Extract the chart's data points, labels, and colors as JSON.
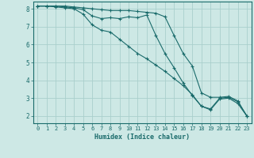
{
  "title": "",
  "xlabel": "Humidex (Indice chaleur)",
  "bg_color": "#cde8e5",
  "grid_color": "#aacfcc",
  "line_color": "#1a6b6b",
  "xlim": [
    -0.5,
    23.5
  ],
  "ylim": [
    1.6,
    8.4
  ],
  "yticks": [
    2,
    3,
    4,
    5,
    6,
    7,
    8
  ],
  "xticks": [
    0,
    1,
    2,
    3,
    4,
    5,
    6,
    7,
    8,
    9,
    10,
    11,
    12,
    13,
    14,
    15,
    16,
    17,
    18,
    19,
    20,
    21,
    22,
    23
  ],
  "line1_x": [
    0,
    1,
    2,
    3,
    4,
    5,
    6,
    7,
    8,
    9,
    10,
    11,
    12,
    13,
    14,
    15,
    16,
    17,
    18,
    19,
    20,
    21,
    22,
    23
  ],
  "line1_y": [
    8.15,
    8.15,
    8.15,
    8.15,
    8.1,
    8.05,
    8.0,
    7.95,
    7.9,
    7.9,
    7.9,
    7.85,
    7.8,
    7.75,
    7.55,
    6.5,
    5.5,
    4.8,
    3.3,
    3.05,
    3.05,
    3.1,
    2.85,
    2.0
  ],
  "line2_x": [
    0,
    1,
    2,
    3,
    4,
    5,
    6,
    7,
    8,
    9,
    10,
    11,
    12,
    13,
    14,
    15,
    16,
    17,
    18,
    19,
    20,
    21,
    22,
    23
  ],
  "line2_y": [
    8.15,
    8.15,
    8.15,
    8.1,
    8.05,
    7.95,
    7.6,
    7.45,
    7.5,
    7.45,
    7.55,
    7.5,
    7.65,
    6.5,
    5.5,
    4.7,
    3.85,
    3.15,
    2.55,
    2.4,
    3.0,
    3.05,
    2.8,
    2.0
  ],
  "line3_x": [
    0,
    1,
    2,
    3,
    4,
    5,
    6,
    7,
    8,
    9,
    10,
    11,
    12,
    13,
    14,
    15,
    16,
    17,
    18,
    19,
    20,
    21,
    22,
    23
  ],
  "line3_y": [
    8.15,
    8.15,
    8.1,
    8.05,
    8.0,
    7.7,
    7.1,
    6.8,
    6.7,
    6.3,
    5.9,
    5.5,
    5.2,
    4.85,
    4.5,
    4.1,
    3.7,
    3.2,
    2.55,
    2.35,
    2.95,
    3.0,
    2.7,
    2.0
  ]
}
